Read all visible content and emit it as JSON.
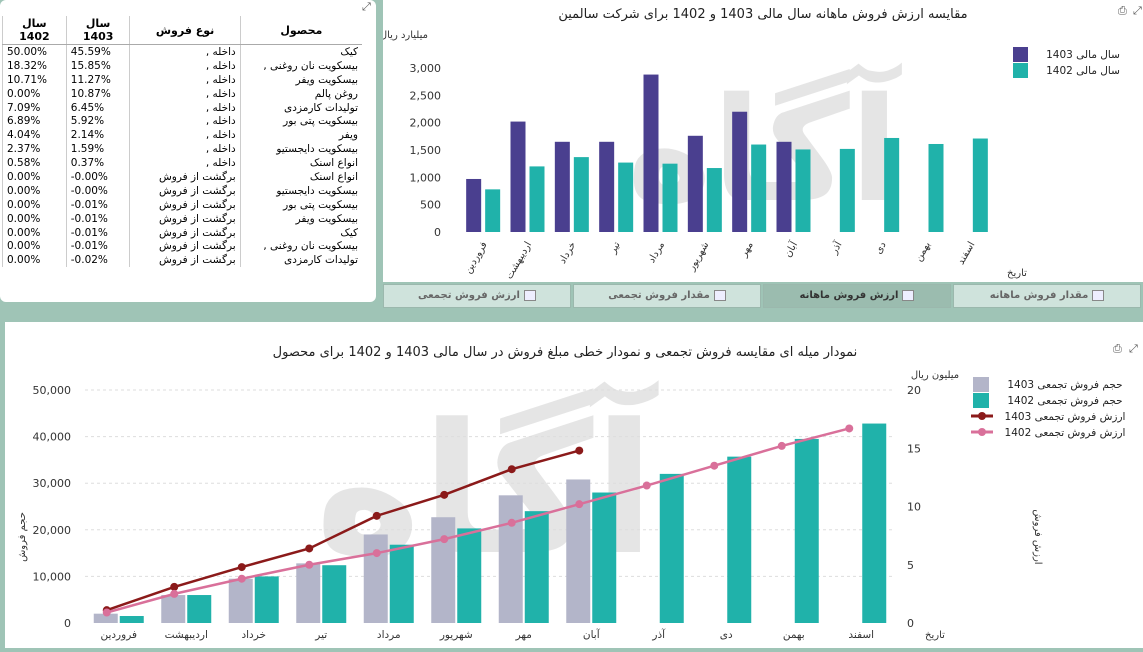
{
  "table": {
    "headers": [
      "محصول",
      "نوع فروش",
      "سال 1403",
      "سال 1402"
    ],
    "rows": [
      [
        "کیک",
        "داخله ,",
        "45.59%",
        "50.00%"
      ],
      [
        "بیسکویت نان روغنی ,",
        "داخله ,",
        "15.85%",
        "18.32%"
      ],
      [
        "بیسکویت ویفر",
        "داخله ,",
        "11.27%",
        "10.71%"
      ],
      [
        "روغن پالم",
        "داخله ,",
        "10.87%",
        "0.00%"
      ],
      [
        "تولیدات کارمزدی",
        "داخله ,",
        "6.45%",
        "7.09%"
      ],
      [
        "بیسکویت پتی بور",
        "داخله ,",
        "5.92%",
        "6.89%"
      ],
      [
        "ویفر",
        "داخله ,",
        "2.14%",
        "4.04%"
      ],
      [
        "بیسکویت دایجستیو",
        "داخله ,",
        "1.59%",
        "2.37%"
      ],
      [
        "انواع اسنک",
        "داخله ,",
        "0.37%",
        "0.58%"
      ],
      [
        "انواع اسنک",
        "برگشت از فروش",
        "-0.00%",
        "0.00%"
      ],
      [
        "بیسکویت دایجستیو",
        "برگشت از فروش",
        "-0.00%",
        "0.00%"
      ],
      [
        "بیسکویت پتی بور",
        "برگشت از فروش",
        "-0.01%",
        "0.00%"
      ],
      [
        "بیسکویت ویفر",
        "برگشت از فروش",
        "-0.01%",
        "0.00%"
      ],
      [
        "کیک",
        "برگشت از فروش",
        "-0.01%",
        "0.00%"
      ],
      [
        "بیسکویت نان روغنی ,",
        "برگشت از فروش",
        "-0.01%",
        "0.00%"
      ],
      [
        "تولیدات کارمزدی",
        "برگشت از فروش",
        "-0.02%",
        "0.00%"
      ]
    ]
  },
  "tabs": [
    "مقدار فروش ماهانه",
    "ارزش فروش ماهانه",
    "مقدار فروش تجمعی",
    "ارزش فروش تجمعی"
  ],
  "watermark": "آگاه",
  "chart_data": [
    {
      "type": "bar",
      "title": "مقایسه ارزش فروش ماهانه سال مالی 1403 و 1402 برای شرکت سالمین",
      "ylabel": "میلیارد ریال",
      "xlabel": "تاریخ",
      "ylim": [
        0,
        3300
      ],
      "yticks": [
        "0",
        "500",
        "1,000",
        "1,500",
        "2,000",
        "2,500",
        "3,000"
      ],
      "categories": [
        "فروردین",
        "اردیبهشت",
        "خرداد",
        "تیر",
        "مرداد",
        "شهریور",
        "مهر",
        "آبان",
        "آذر",
        "دی",
        "بهمن",
        "اسفند"
      ],
      "series": [
        {
          "name": "سال مالی 1403",
          "color": "#4a3f8f",
          "values": [
            970,
            2020,
            1650,
            1650,
            2880,
            1760,
            2200,
            1650,
            null,
            null,
            null,
            null
          ]
        },
        {
          "name": "سال مالی 1402",
          "color": "#20b2aa",
          "values": [
            780,
            1200,
            1370,
            1270,
            1250,
            1170,
            1600,
            1510,
            1520,
            1720,
            1610,
            1710
          ]
        }
      ]
    },
    {
      "type": "bar+line",
      "title": "نمودار میله ای مقایسه فروش تجمعی و نمودار خطی مبلغ فروش در سال مالی 1403 و 1402 برای محصول",
      "ylabel": "حجم فروش",
      "y2label": "ارزش فروش",
      "y2unit": "میلیون ریال",
      "xlabel": "تاریخ",
      "ylim": [
        0,
        55000
      ],
      "y2lim": [
        0,
        20
      ],
      "yticks": [
        "0",
        "10,000",
        "20,000",
        "30,000",
        "40,000",
        "50,000"
      ],
      "y2ticks": [
        "0",
        "5",
        "10",
        "15",
        "20"
      ],
      "categories": [
        "فروردین",
        "اردیبهشت",
        "خرداد",
        "تیر",
        "مرداد",
        "شهریور",
        "مهر",
        "آبان",
        "آذر",
        "دی",
        "بهمن",
        "اسفند"
      ],
      "series": [
        {
          "name": "حجم فروش تجمعی 1403",
          "kind": "bar",
          "color": "#b3b5c9",
          "values": [
            2000,
            6000,
            9500,
            12800,
            19000,
            22700,
            27400,
            30800,
            null,
            null,
            null,
            null
          ]
        },
        {
          "name": "حجم فروش تجمعی 1402",
          "kind": "bar",
          "color": "#20b2aa",
          "values": [
            1500,
            6000,
            10000,
            12400,
            16800,
            20300,
            24000,
            28000,
            32000,
            35700,
            39500,
            42800
          ]
        },
        {
          "name": "ارزش فروش تجمعی 1403",
          "kind": "line",
          "color": "#8b1a1a",
          "values": [
            1.1,
            3.1,
            4.8,
            6.4,
            9.2,
            11.0,
            13.2,
            14.8,
            null,
            null,
            null,
            null
          ]
        },
        {
          "name": "ارزش فروش تجمعی 1402",
          "kind": "line",
          "color": "#d9709a",
          "values": [
            0.9,
            2.5,
            3.8,
            5.0,
            6.0,
            7.2,
            8.6,
            10.2,
            11.8,
            13.5,
            15.2,
            16.7
          ]
        }
      ]
    }
  ]
}
